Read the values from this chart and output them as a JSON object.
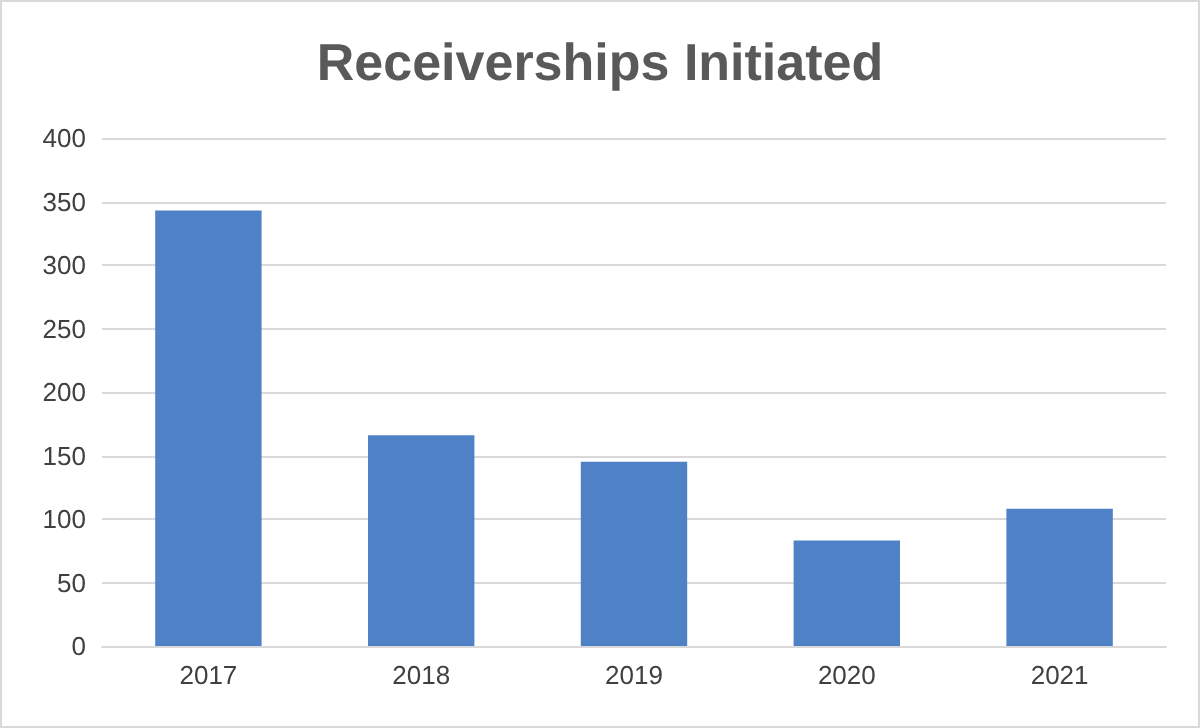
{
  "chart_data": {
    "type": "bar",
    "title": "Receiverships Initiated",
    "categories": [
      "2017",
      "2018",
      "2019",
      "2020",
      "2021"
    ],
    "values": [
      343,
      166,
      145,
      83,
      108
    ],
    "color": "#4f81c7",
    "ylim": [
      0,
      400
    ],
    "yticks": [
      0,
      50,
      100,
      150,
      200,
      250,
      300,
      350,
      400
    ],
    "grid": "y"
  }
}
